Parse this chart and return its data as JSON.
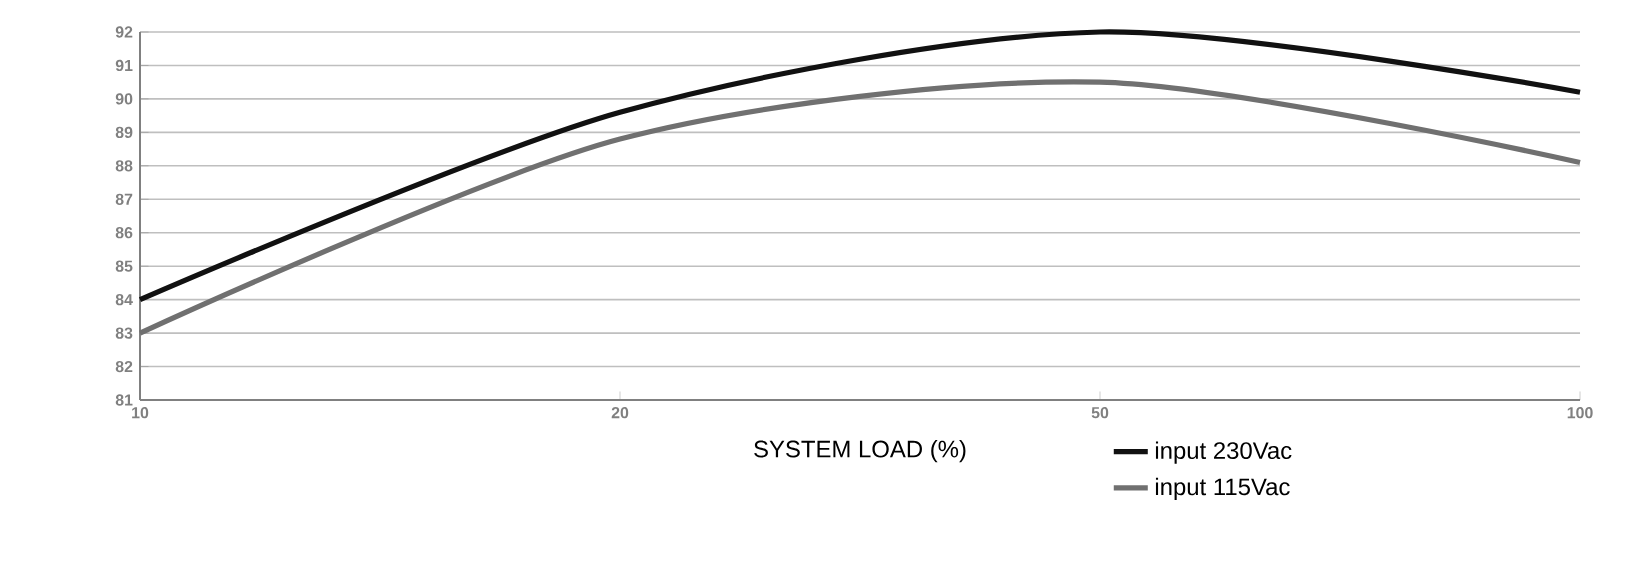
{
  "chart_data": {
    "type": "line",
    "xlabel": "SYSTEM LOAD (%)",
    "categories": [
      "10",
      "20",
      "50",
      "100"
    ],
    "series": [
      {
        "name": "input 230Vac",
        "color": "#111111",
        "values": [
          84,
          89.6,
          92,
          90.2
        ]
      },
      {
        "name": "input 115Vac",
        "color": "#707070",
        "values": [
          83,
          88.8,
          90.5,
          88.1
        ]
      }
    ],
    "ylim": [
      81,
      92
    ],
    "yticks": [
      81,
      82,
      83,
      84,
      85,
      86,
      87,
      88,
      89,
      90,
      91,
      92
    ],
    "grid": "y",
    "legend": "bottom right",
    "marker": "none",
    "line_style": "solid"
  }
}
